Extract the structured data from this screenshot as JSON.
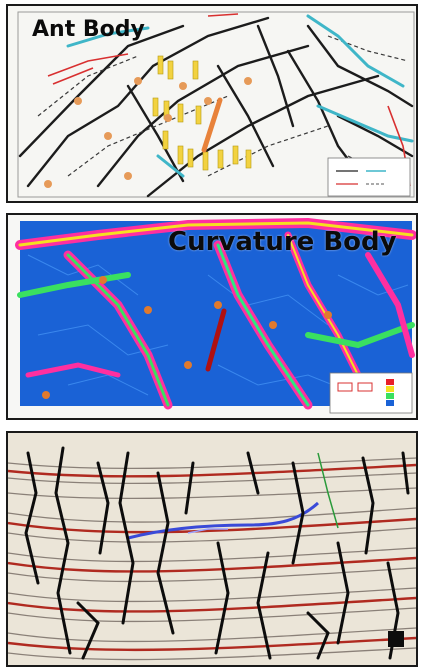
{
  "panels": {
    "ant_body": {
      "label": "Ant Body"
    },
    "curvature_body": {
      "label": "Curvature Body"
    },
    "seismic_section": {}
  },
  "colors": {
    "ant_marker": "#e8823a",
    "curvature_marker": "#b01010",
    "fault_lines": "#111111",
    "cyan_faults": "#3fb6c8",
    "red_faults": "#d83030",
    "well_markers": "#f2d240",
    "curvature_background": "#1565d8",
    "curvature_edges": "#ff2fa0",
    "seismic_reflector": "#b02a20"
  },
  "icons": {
    "ant_marker": "orange-line-icon",
    "curvature_marker": "red-line-icon",
    "legend": "legend-box-icon"
  }
}
